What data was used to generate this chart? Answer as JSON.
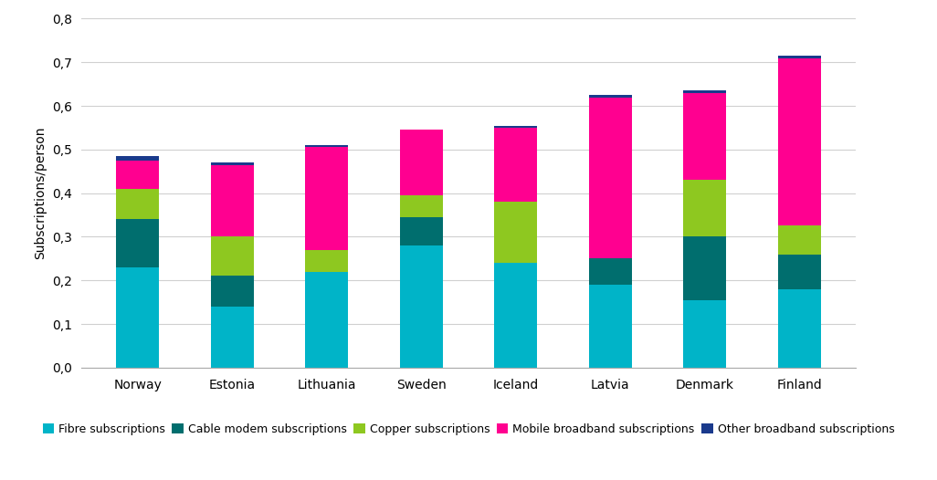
{
  "countries": [
    "Norway",
    "Estonia",
    "Lithuania",
    "Sweden",
    "Iceland",
    "Latvia",
    "Denmark",
    "Finland"
  ],
  "fibre": [
    0.23,
    0.14,
    0.22,
    0.28,
    0.24,
    0.19,
    0.155,
    0.18
  ],
  "cable_modem": [
    0.11,
    0.07,
    0.0,
    0.065,
    0.0,
    0.06,
    0.145,
    0.08
  ],
  "copper": [
    0.07,
    0.09,
    0.05,
    0.05,
    0.14,
    0.0,
    0.13,
    0.065
  ],
  "mobile_bb": [
    0.065,
    0.165,
    0.235,
    0.15,
    0.17,
    0.37,
    0.2,
    0.385
  ],
  "other_bb": [
    0.01,
    0.005,
    0.005,
    0.0,
    0.005,
    0.005,
    0.005,
    0.005
  ],
  "colors": {
    "fibre": "#00B4C8",
    "cable_modem": "#006E6E",
    "copper": "#8EC820",
    "mobile_bb": "#FF0090",
    "other_bb": "#1A3A8C"
  },
  "ylabel": "Subscriptions/person",
  "ylim": [
    0,
    0.8
  ],
  "yticks": [
    0,
    0.1,
    0.2,
    0.3,
    0.4,
    0.5,
    0.6,
    0.7,
    0.8
  ],
  "legend_labels": [
    "Fibre subscriptions",
    "Cable modem subscriptions",
    "Copper subscriptions",
    "Mobile broadband subscriptions",
    "Other broadband subscriptions"
  ],
  "background_color": "#ffffff",
  "grid_color": "#d0d0d0",
  "bar_width": 0.45,
  "figsize": [
    10.26,
    5.26
  ],
  "dpi": 100
}
